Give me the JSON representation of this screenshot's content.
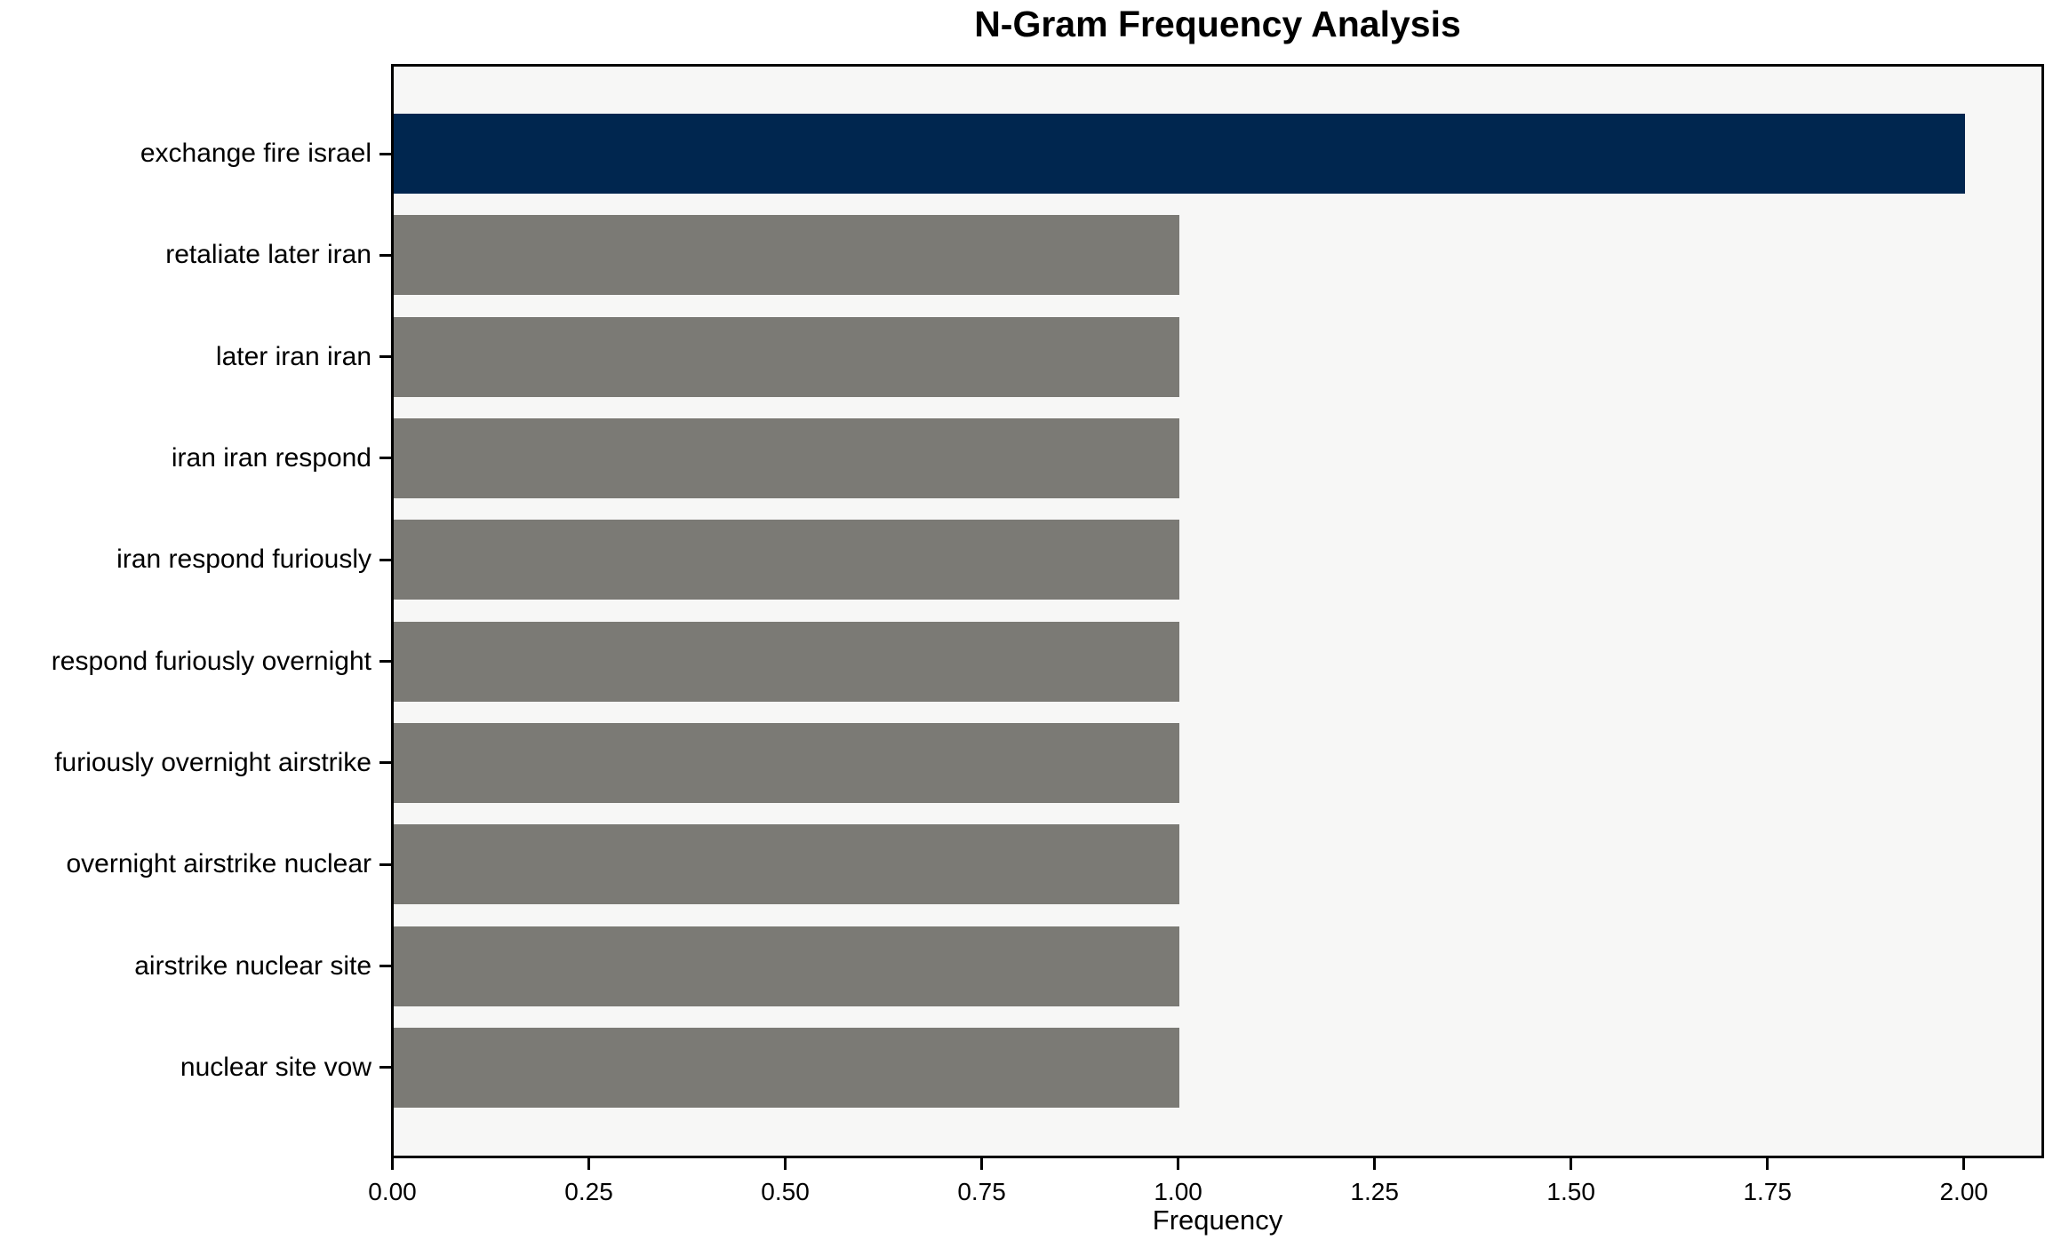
{
  "chart_data": {
    "type": "bar",
    "orientation": "horizontal",
    "title": "N-Gram Frequency Analysis",
    "xlabel": "Frequency",
    "ylabel": "",
    "categories": [
      "exchange fire israel",
      "retaliate later iran",
      "later iran iran",
      "iran iran respond",
      "iran respond furiously",
      "respond furiously overnight",
      "furiously overnight airstrike",
      "overnight airstrike nuclear",
      "airstrike nuclear site",
      "nuclear site vow"
    ],
    "values": [
      2,
      1,
      1,
      1,
      1,
      1,
      1,
      1,
      1,
      1
    ],
    "xticks": [
      0,
      0.25,
      0.5,
      0.75,
      1.0,
      1.25,
      1.5,
      1.75,
      2.0
    ],
    "xtick_labels": [
      "0.00",
      "0.25",
      "0.50",
      "0.75",
      "1.00",
      "1.25",
      "1.50",
      "1.75",
      "2.00"
    ],
    "xlim": [
      0,
      2.097
    ],
    "grid": false,
    "legend": "none",
    "highlight_index": 0,
    "colors": {
      "highlight": "#00264f",
      "default": "#7b7a75",
      "plot_background": "#f7f7f6",
      "figure_background": "#ffffff",
      "axis": "#000000",
      "text": "#000000"
    }
  }
}
